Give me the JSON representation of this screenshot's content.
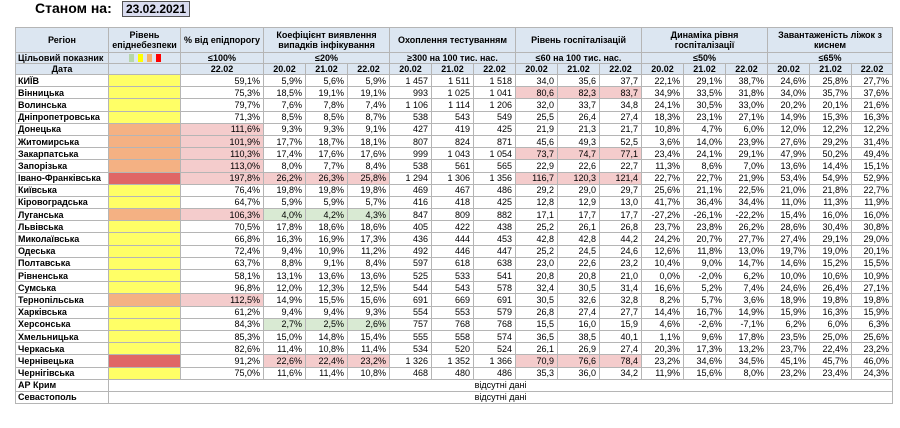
{
  "as_of": {
    "label": "Станом на:",
    "date": "23.02.2021"
  },
  "headers": {
    "region": "Регіон",
    "level": "Рівень епіднебезпеки",
    "pct": "% від епідпорогу",
    "detect": "Коефіцієнт виявлення випадків інфікування",
    "testing": "Охоплення тестуванням",
    "hosp": "Рівень госпіталізацій",
    "dynamics": "Динаміка рівня госпіталізації",
    "beds": "Завантаженість ліжок з киснем"
  },
  "targets": {
    "label": "Цільовий показник",
    "level_colors": [
      "#b6d7a8",
      "#ffff00",
      "#f6b26b",
      "#ff0000"
    ],
    "pct": "≤100%",
    "detect": "≤20%",
    "testing": "≥300 на 100 тис. нас.",
    "hosp": "≤60 на 100 тис. нас.",
    "dynamics": "≤50%",
    "beds": "≤65%"
  },
  "dates": {
    "label": "Дата",
    "pct": "22.02",
    "triple": [
      "20.02",
      "21.02",
      "22.02"
    ]
  },
  "regions": [
    {
      "name": "КИЇВ",
      "lv": "y",
      "pct": "59,1%",
      "pc": "",
      "det": [
        "5,9%",
        "5,6%",
        "5,9%"
      ],
      "dc": [
        "",
        "",
        ""
      ],
      "tst": [
        "1 457",
        "1 511",
        "1 518"
      ],
      "hsp": [
        "34,0",
        "35,6",
        "37,7"
      ],
      "hc": [
        "",
        "",
        ""
      ],
      "dyn": [
        "22,1%",
        "29,1%",
        "38,7%"
      ],
      "bed": [
        "24,6%",
        "25,8%",
        "27,7%"
      ]
    },
    {
      "name": "Вінницька",
      "lv": "y",
      "pct": "75,3%",
      "pc": "",
      "det": [
        "18,5%",
        "19,1%",
        "19,1%"
      ],
      "dc": [
        "",
        "",
        ""
      ],
      "tst": [
        "993",
        "1 025",
        "1 041"
      ],
      "hsp": [
        "80,6",
        "82,3",
        "83,7"
      ],
      "hc": [
        "p",
        "p",
        "p"
      ],
      "dyn": [
        "34,9%",
        "33,5%",
        "31,8%"
      ],
      "bed": [
        "34,0%",
        "35,7%",
        "37,6%"
      ]
    },
    {
      "name": "Волинська",
      "lv": "y",
      "pct": "79,7%",
      "pc": "",
      "det": [
        "7,6%",
        "7,8%",
        "7,4%"
      ],
      "dc": [
        "",
        "",
        ""
      ],
      "tst": [
        "1 106",
        "1 114",
        "1 206"
      ],
      "hsp": [
        "32,0",
        "33,7",
        "34,8"
      ],
      "hc": [
        "",
        "",
        ""
      ],
      "dyn": [
        "24,1%",
        "30,5%",
        "33,0%"
      ],
      "bed": [
        "20,2%",
        "20,1%",
        "21,6%"
      ]
    },
    {
      "name": "Дніпропетровська",
      "lv": "y",
      "pct": "71,3%",
      "pc": "",
      "det": [
        "8,5%",
        "8,5%",
        "8,7%"
      ],
      "dc": [
        "",
        "",
        ""
      ],
      "tst": [
        "538",
        "543",
        "549"
      ],
      "hsp": [
        "25,5",
        "26,4",
        "27,4"
      ],
      "hc": [
        "",
        "",
        ""
      ],
      "dyn": [
        "18,3%",
        "23,1%",
        "27,1%"
      ],
      "bed": [
        "14,9%",
        "15,3%",
        "16,3%"
      ]
    },
    {
      "name": "Донецька",
      "lv": "o",
      "pct": "111,6%",
      "pc": "p",
      "det": [
        "9,3%",
        "9,3%",
        "9,1%"
      ],
      "dc": [
        "",
        "",
        ""
      ],
      "tst": [
        "427",
        "419",
        "425"
      ],
      "hsp": [
        "21,9",
        "21,3",
        "21,7"
      ],
      "hc": [
        "",
        "",
        ""
      ],
      "dyn": [
        "10,8%",
        "4,7%",
        "6,0%"
      ],
      "bed": [
        "12,0%",
        "12,2%",
        "12,2%"
      ]
    },
    {
      "name": "Житомирська",
      "lv": "o",
      "pct": "101,9%",
      "pc": "p",
      "det": [
        "17,7%",
        "18,7%",
        "18,1%"
      ],
      "dc": [
        "",
        "",
        ""
      ],
      "tst": [
        "807",
        "824",
        "871"
      ],
      "hsp": [
        "45,6",
        "49,3",
        "52,5"
      ],
      "hc": [
        "",
        "",
        ""
      ],
      "dyn": [
        "3,6%",
        "14,0%",
        "23,9%"
      ],
      "bed": [
        "27,6%",
        "29,2%",
        "31,4%"
      ]
    },
    {
      "name": "Закарпатська",
      "lv": "o",
      "pct": "110,3%",
      "pc": "p",
      "det": [
        "17,4%",
        "17,6%",
        "17,6%"
      ],
      "dc": [
        "",
        "",
        ""
      ],
      "tst": [
        "999",
        "1 043",
        "1 054"
      ],
      "hsp": [
        "73,7",
        "74,7",
        "77,1"
      ],
      "hc": [
        "p",
        "p",
        "p"
      ],
      "dyn": [
        "23,4%",
        "24,1%",
        "29,1%"
      ],
      "bed": [
        "47,9%",
        "50,2%",
        "49,4%"
      ]
    },
    {
      "name": "Запорізька",
      "lv": "o",
      "pct": "113,0%",
      "pc": "p",
      "det": [
        "8,0%",
        "7,7%",
        "8,4%"
      ],
      "dc": [
        "",
        "",
        ""
      ],
      "tst": [
        "538",
        "561",
        "565"
      ],
      "hsp": [
        "22,9",
        "22,6",
        "22,7"
      ],
      "hc": [
        "",
        "",
        ""
      ],
      "dyn": [
        "11,3%",
        "8,6%",
        "7,0%"
      ],
      "bed": [
        "13,6%",
        "14,4%",
        "15,1%"
      ]
    },
    {
      "name": "Івано-Франківська",
      "lv": "r",
      "pct": "197,8%",
      "pc": "p",
      "det": [
        "26,2%",
        "26,3%",
        "25,8%"
      ],
      "dc": [
        "p",
        "p",
        "p"
      ],
      "tst": [
        "1 294",
        "1 306",
        "1 356"
      ],
      "hsp": [
        "116,7",
        "120,3",
        "121,4"
      ],
      "hc": [
        "p",
        "p",
        "p"
      ],
      "dyn": [
        "22,7%",
        "22,7%",
        "21,9%"
      ],
      "bed": [
        "53,4%",
        "54,9%",
        "52,9%"
      ]
    },
    {
      "name": "Київська",
      "lv": "y",
      "pct": "76,4%",
      "pc": "",
      "det": [
        "19,8%",
        "19,8%",
        "19,8%"
      ],
      "dc": [
        "",
        "",
        ""
      ],
      "tst": [
        "469",
        "467",
        "486"
      ],
      "hsp": [
        "29,2",
        "29,0",
        "29,7"
      ],
      "hc": [
        "",
        "",
        ""
      ],
      "dyn": [
        "25,6%",
        "21,1%",
        "22,5%"
      ],
      "bed": [
        "21,0%",
        "21,8%",
        "22,7%"
      ]
    },
    {
      "name": "Кіровоградська",
      "lv": "y",
      "pct": "64,7%",
      "pc": "",
      "det": [
        "5,9%",
        "5,9%",
        "5,7%"
      ],
      "dc": [
        "",
        "",
        ""
      ],
      "tst": [
        "416",
        "418",
        "425"
      ],
      "hsp": [
        "12,8",
        "12,9",
        "13,0"
      ],
      "hc": [
        "",
        "",
        ""
      ],
      "dyn": [
        "41,7%",
        "36,4%",
        "34,4%"
      ],
      "bed": [
        "11,0%",
        "11,3%",
        "11,9%"
      ]
    },
    {
      "name": "Луганська",
      "lv": "o",
      "pct": "106,3%",
      "pc": "p",
      "det": [
        "4,0%",
        "4,2%",
        "4,3%"
      ],
      "dc": [
        "g",
        "g",
        "g"
      ],
      "tst": [
        "847",
        "809",
        "882"
      ],
      "hsp": [
        "17,1",
        "17,7",
        "17,7"
      ],
      "hc": [
        "",
        "",
        ""
      ],
      "dyn": [
        "-27,2%",
        "-26,1%",
        "-22,2%"
      ],
      "bed": [
        "15,4%",
        "16,0%",
        "16,0%"
      ]
    },
    {
      "name": "Львівська",
      "lv": "y",
      "pct": "70,5%",
      "pc": "",
      "det": [
        "17,8%",
        "18,6%",
        "18,6%"
      ],
      "dc": [
        "",
        "",
        ""
      ],
      "tst": [
        "405",
        "422",
        "438"
      ],
      "hsp": [
        "25,2",
        "26,1",
        "26,8"
      ],
      "hc": [
        "",
        "",
        ""
      ],
      "dyn": [
        "23,7%",
        "23,8%",
        "26,2%"
      ],
      "bed": [
        "28,6%",
        "30,4%",
        "30,8%"
      ]
    },
    {
      "name": "Миколаївська",
      "lv": "y",
      "pct": "66,8%",
      "pc": "",
      "det": [
        "16,3%",
        "16,9%",
        "17,3%"
      ],
      "dc": [
        "",
        "",
        ""
      ],
      "tst": [
        "436",
        "444",
        "453"
      ],
      "hsp": [
        "42,8",
        "42,8",
        "44,2"
      ],
      "hc": [
        "",
        "",
        ""
      ],
      "dyn": [
        "24,2%",
        "20,7%",
        "27,7%"
      ],
      "bed": [
        "27,4%",
        "29,1%",
        "29,0%"
      ]
    },
    {
      "name": "Одеська",
      "lv": "y",
      "pct": "72,4%",
      "pc": "",
      "det": [
        "9,4%",
        "10,9%",
        "11,2%"
      ],
      "dc": [
        "",
        "",
        ""
      ],
      "tst": [
        "492",
        "446",
        "447"
      ],
      "hsp": [
        "25,2",
        "24,5",
        "24,6"
      ],
      "hc": [
        "",
        "",
        ""
      ],
      "dyn": [
        "12,6%",
        "11,8%",
        "13,0%"
      ],
      "bed": [
        "19,7%",
        "19,0%",
        "20,1%"
      ]
    },
    {
      "name": "Полтавська",
      "lv": "y",
      "pct": "63,7%",
      "pc": "",
      "det": [
        "8,8%",
        "9,1%",
        "8,4%"
      ],
      "dc": [
        "",
        "",
        ""
      ],
      "tst": [
        "597",
        "618",
        "638"
      ],
      "hsp": [
        "23,0",
        "22,6",
        "23,2"
      ],
      "hc": [
        "",
        "",
        ""
      ],
      "dyn": [
        "10,4%",
        "9,0%",
        "14,7%"
      ],
      "bed": [
        "14,6%",
        "15,2%",
        "15,5%"
      ]
    },
    {
      "name": "Рівненська",
      "lv": "y",
      "pct": "58,1%",
      "pc": "",
      "det": [
        "13,1%",
        "13,6%",
        "13,6%"
      ],
      "dc": [
        "",
        "",
        ""
      ],
      "tst": [
        "525",
        "533",
        "541"
      ],
      "hsp": [
        "20,8",
        "20,8",
        "21,0"
      ],
      "hc": [
        "",
        "",
        ""
      ],
      "dyn": [
        "0,0%",
        "-2,0%",
        "6,2%"
      ],
      "bed": [
        "10,0%",
        "10,6%",
        "10,9%"
      ]
    },
    {
      "name": "Сумська",
      "lv": "y",
      "pct": "96,8%",
      "pc": "",
      "det": [
        "12,0%",
        "12,3%",
        "12,5%"
      ],
      "dc": [
        "",
        "",
        ""
      ],
      "tst": [
        "544",
        "543",
        "578"
      ],
      "hsp": [
        "32,4",
        "30,5",
        "31,4"
      ],
      "hc": [
        "",
        "",
        ""
      ],
      "dyn": [
        "16,6%",
        "5,2%",
        "7,4%"
      ],
      "bed": [
        "24,6%",
        "26,4%",
        "27,1%"
      ]
    },
    {
      "name": "Тернопільська",
      "lv": "o",
      "pct": "112,5%",
      "pc": "p",
      "det": [
        "14,9%",
        "15,5%",
        "15,6%"
      ],
      "dc": [
        "",
        "",
        ""
      ],
      "tst": [
        "691",
        "669",
        "691"
      ],
      "hsp": [
        "30,5",
        "32,6",
        "32,8"
      ],
      "hc": [
        "",
        "",
        ""
      ],
      "dyn": [
        "8,2%",
        "5,7%",
        "3,6%"
      ],
      "bed": [
        "18,9%",
        "19,8%",
        "19,8%"
      ]
    },
    {
      "name": "Харківська",
      "lv": "y",
      "pct": "61,2%",
      "pc": "",
      "det": [
        "9,4%",
        "9,4%",
        "9,3%"
      ],
      "dc": [
        "",
        "",
        ""
      ],
      "tst": [
        "554",
        "553",
        "579"
      ],
      "hsp": [
        "26,8",
        "27,4",
        "27,7"
      ],
      "hc": [
        "",
        "",
        ""
      ],
      "dyn": [
        "14,4%",
        "16,7%",
        "14,9%"
      ],
      "bed": [
        "15,9%",
        "16,3%",
        "15,9%"
      ]
    },
    {
      "name": "Херсонська",
      "lv": "y",
      "pct": "84,3%",
      "pc": "",
      "det": [
        "2,7%",
        "2,5%",
        "2,6%"
      ],
      "dc": [
        "g",
        "g",
        "g"
      ],
      "tst": [
        "757",
        "768",
        "768"
      ],
      "hsp": [
        "15,5",
        "16,0",
        "15,9"
      ],
      "hc": [
        "",
        "",
        ""
      ],
      "dyn": [
        "4,6%",
        "-2,6%",
        "-7,1%"
      ],
      "bed": [
        "6,2%",
        "6,0%",
        "6,3%"
      ]
    },
    {
      "name": "Хмельницька",
      "lv": "y",
      "pct": "85,3%",
      "pc": "",
      "det": [
        "15,0%",
        "14,8%",
        "15,4%"
      ],
      "dc": [
        "",
        "",
        ""
      ],
      "tst": [
        "555",
        "558",
        "574"
      ],
      "hsp": [
        "36,5",
        "38,5",
        "40,1"
      ],
      "hc": [
        "",
        "",
        ""
      ],
      "dyn": [
        "1,1%",
        "9,6%",
        "17,8%"
      ],
      "bed": [
        "23,5%",
        "25,0%",
        "25,6%"
      ]
    },
    {
      "name": "Черкаська",
      "lv": "y",
      "pct": "82,6%",
      "pc": "",
      "det": [
        "11,4%",
        "10,8%",
        "11,4%"
      ],
      "dc": [
        "",
        "",
        ""
      ],
      "tst": [
        "534",
        "520",
        "524"
      ],
      "hsp": [
        "26,1",
        "26,9",
        "27,4"
      ],
      "hc": [
        "",
        "",
        ""
      ],
      "dyn": [
        "20,3%",
        "17,3%",
        "13,2%"
      ],
      "bed": [
        "23,7%",
        "22,4%",
        "23,2%"
      ]
    },
    {
      "name": "Чернівецька",
      "lv": "r",
      "pct": "91,2%",
      "pc": "",
      "det": [
        "22,6%",
        "22,4%",
        "23,2%"
      ],
      "dc": [
        "p",
        "p",
        "p"
      ],
      "tst": [
        "1 326",
        "1 352",
        "1 366"
      ],
      "hsp": [
        "70,9",
        "76,6",
        "78,4"
      ],
      "hc": [
        "p",
        "p",
        "p"
      ],
      "dyn": [
        "23,2%",
        "34,6%",
        "34,5%"
      ],
      "bed": [
        "45,1%",
        "45,7%",
        "46,0%"
      ]
    },
    {
      "name": "Чернігівська",
      "lv": "y",
      "pct": "75,0%",
      "pc": "",
      "det": [
        "11,6%",
        "11,4%",
        "10,8%"
      ],
      "dc": [
        "",
        "",
        ""
      ],
      "tst": [
        "468",
        "480",
        "486"
      ],
      "hsp": [
        "35,3",
        "36,0",
        "34,2"
      ],
      "hc": [
        "",
        "",
        ""
      ],
      "dyn": [
        "11,9%",
        "15,6%",
        "8,0%"
      ],
      "bed": [
        "23,2%",
        "23,4%",
        "24,3%"
      ]
    }
  ],
  "nodata": [
    {
      "name": "АР Крим",
      "text": "відсутні дані"
    },
    {
      "name": "Севастополь",
      "text": "відсутні дані"
    }
  ]
}
